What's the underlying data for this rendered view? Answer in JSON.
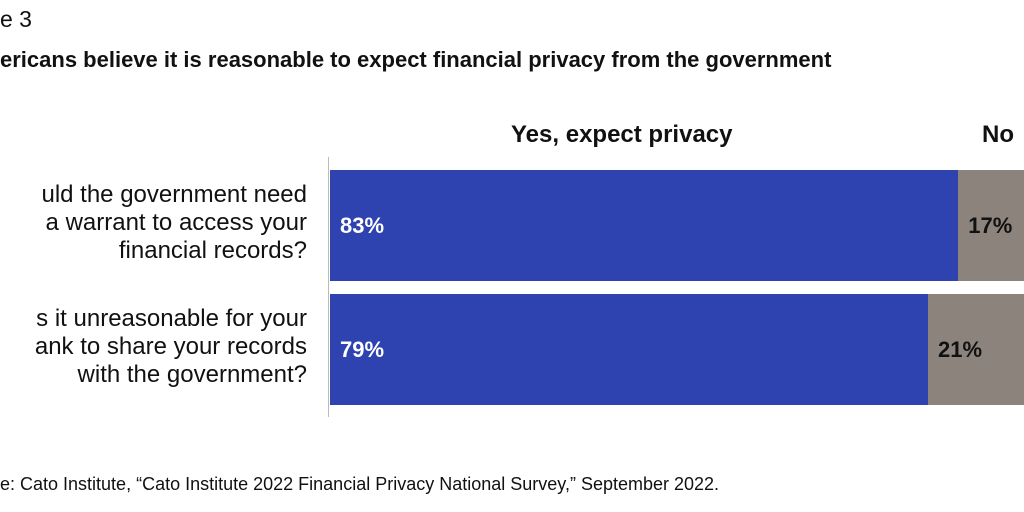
{
  "figure_label": "e 3",
  "title": "ericans believe it is reasonable to expect financial privacy from the government",
  "source": "e: Cato Institute, “Cato Institute 2022 Financial Privacy National Survey,” September 2022.",
  "chart_data": {
    "type": "bar",
    "orientation": "horizontal",
    "stacked": true,
    "title": "ericans believe it is reasonable to expect financial privacy from the government",
    "categories": [
      [
        "uld the government need",
        "a warrant to access your",
        "financial records?"
      ],
      [
        "s it unreasonable for your",
        "ank to share your records",
        "with the government?"
      ]
    ],
    "series": [
      {
        "name": "Yes, expect privacy",
        "values": [
          83,
          79
        ],
        "labels": [
          "83%",
          "79%"
        ],
        "color": "#2e42b0"
      },
      {
        "name": "No",
        "values": [
          17,
          21
        ],
        "labels": [
          "17%",
          "21%"
        ],
        "color": "#8c847c"
      }
    ],
    "xlim": [
      0,
      100
    ],
    "grid": false,
    "legend": "top"
  }
}
